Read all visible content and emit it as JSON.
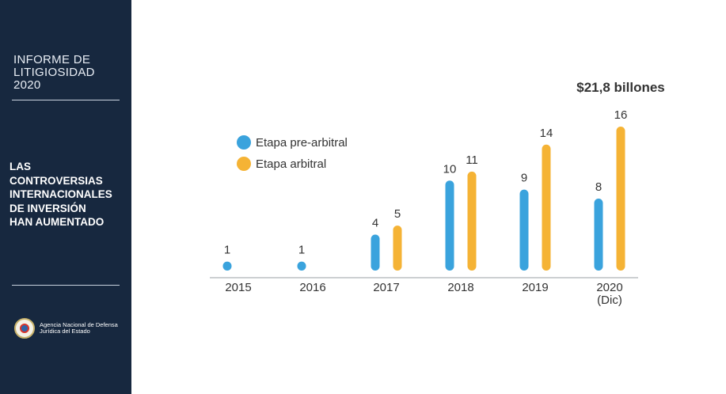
{
  "sidebar": {
    "report_title_lines": [
      "INFORME DE",
      "LITIGIOSIDAD",
      "2020"
    ],
    "headline_lines": [
      "LAS",
      "CONTROVERSIAS",
      "INTERNACIONALES",
      "DE INVERSIÓN",
      "HAN AUMENTADO"
    ],
    "agency_lines": [
      "Agencia Nacional de Defensa",
      "Jurídica del Estado"
    ]
  },
  "chart_data": {
    "type": "bar",
    "title": "",
    "annotation": "$21,8 billones",
    "categories": [
      "2015",
      "2016",
      "2017",
      "2018",
      "2019",
      "2020"
    ],
    "category_sublabels": [
      "",
      "",
      "",
      "",
      "",
      "(Dic)"
    ],
    "series": [
      {
        "name": "Etapa pre-arbitral",
        "color": "#3aa3dd",
        "values": [
          1,
          1,
          4,
          10,
          9,
          8
        ]
      },
      {
        "name": "Etapa arbitral",
        "color": "#f5b335",
        "values": [
          null,
          null,
          5,
          11,
          14,
          16
        ]
      }
    ],
    "ylim": [
      0,
      16
    ],
    "xlabel": "",
    "ylabel": "",
    "grid": false,
    "legend_position": "top-left"
  },
  "colors": {
    "sidebar_bg": "#17283f",
    "axis": "#9aa0a6",
    "label": "#333333"
  }
}
